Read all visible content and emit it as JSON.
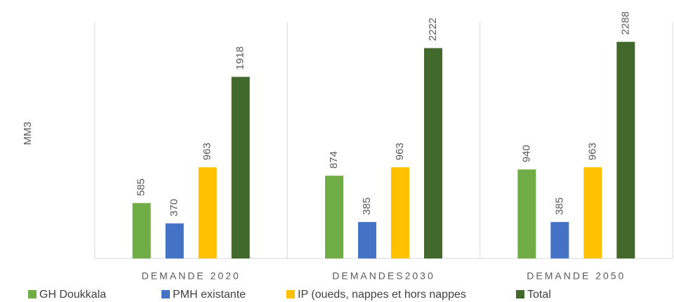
{
  "chart_data": {
    "type": "bar",
    "y_label": "MM3",
    "categories": [
      "DEMANDE 2020",
      "DEMANDES2030",
      "DEMANDE 2050"
    ],
    "series": [
      {
        "name": "GH Doukkala",
        "color": "#70ad47",
        "values": [
          585,
          874,
          940
        ]
      },
      {
        "name": "PMH existante",
        "color": "#4472c4",
        "values": [
          370,
          385,
          385
        ]
      },
      {
        "name": "IP (oueds, nappes et hors nappes",
        "color": "#ffc000",
        "values": [
          963,
          963,
          963
        ]
      },
      {
        "name": "Total",
        "color": "#43682b",
        "values": [
          1918,
          2222,
          2288
        ]
      }
    ],
    "ylim": [
      0,
      2500
    ],
    "grid": false,
    "legend": "bottom"
  }
}
